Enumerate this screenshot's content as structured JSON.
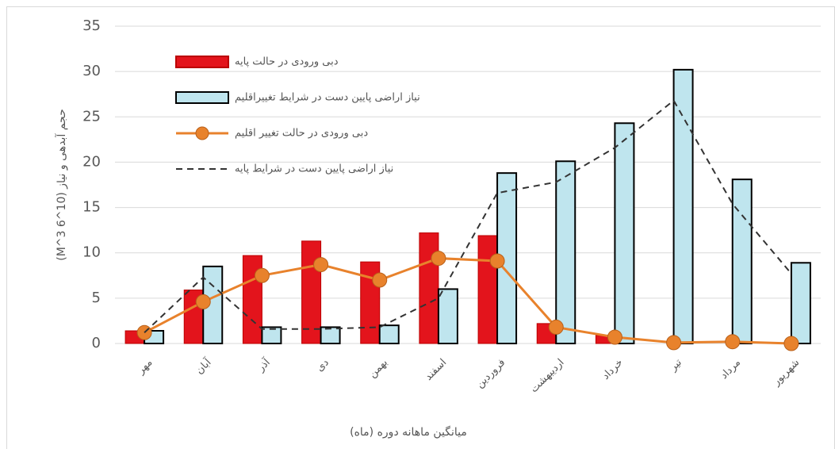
{
  "chart_data": {
    "type": "bar",
    "ylabel": "حجم آبدهی و نیاز (10^6 M^3)",
    "xlabel": "میانگین ماهانه دوره (ماه)",
    "categories": [
      "مهر",
      "آبان",
      "آذر",
      "دی",
      "بهمن",
      "اسفند",
      "فروردین",
      "اردیبهشت",
      "خرداد",
      "تیر",
      "مرداد",
      "شهریور"
    ],
    "series": [
      {
        "name": "دبی ورودی  در حالت پایه",
        "type": "bar",
        "color": "#e3141c",
        "values": [
          1.4,
          5.9,
          9.7,
          11.3,
          9.0,
          12.2,
          11.9,
          2.2,
          0.9,
          0,
          0,
          0
        ]
      },
      {
        "name": "نیاز اراضی پایین دست در شرایط تغییراقلیم",
        "type": "bar",
        "color": "#bfe5ee",
        "values": [
          1.4,
          8.5,
          1.8,
          1.8,
          2.0,
          6.0,
          18.8,
          20.1,
          24.3,
          30.2,
          18.1,
          8.9
        ]
      },
      {
        "name": "دبی ورودی  در حالت تغییر اقلیم",
        "type": "line",
        "color": "#e8822c",
        "markers": true,
        "values": [
          1.2,
          4.6,
          7.5,
          8.7,
          7.0,
          9.4,
          9.1,
          1.8,
          0.7,
          0.1,
          0.2,
          0.0
        ]
      },
      {
        "name": "نیاز اراضی پایین دست در شرایط پایه",
        "type": "line",
        "color": "#333333",
        "dashed": true,
        "values": [
          1.2,
          7.3,
          1.6,
          1.6,
          1.8,
          5.0,
          16.6,
          17.8,
          21.6,
          26.8,
          15.4,
          7.7
        ]
      }
    ],
    "ylim": [
      0,
      35
    ],
    "yticks": [
      0,
      5,
      10,
      15,
      20,
      25,
      30,
      35
    ],
    "grid": true
  }
}
